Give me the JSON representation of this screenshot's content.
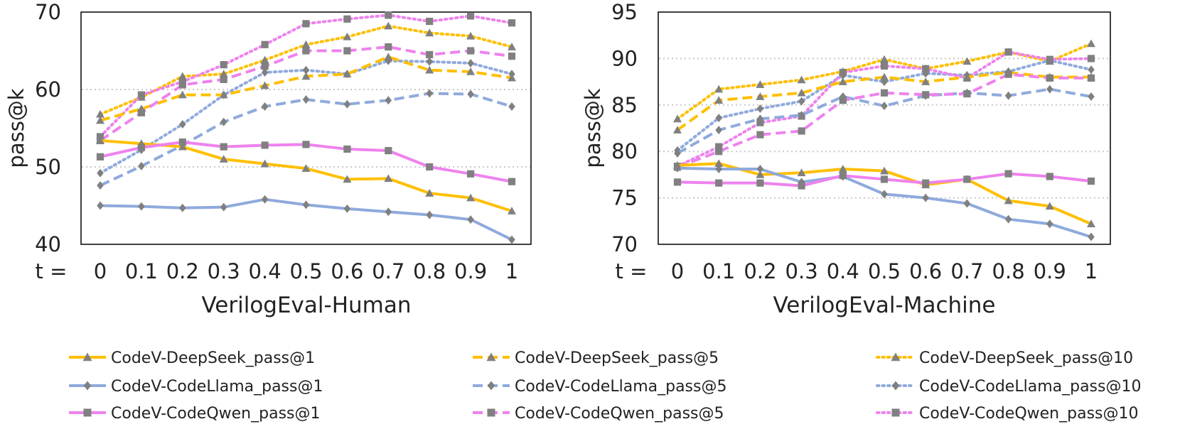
{
  "chart_data": [
    {
      "type": "line",
      "title": "",
      "xlabel": "VerilogEval-Human",
      "ylabel": "pass@k",
      "x_prefix": "t =",
      "categories": [
        "0",
        "0.1",
        "0.2",
        "0.3",
        "0.4",
        "0.5",
        "0.6",
        "0.7",
        "0.8",
        "0.9",
        "1"
      ],
      "ylim": [
        40,
        70
      ],
      "yticks": [
        "40",
        "50",
        "60",
        "70"
      ],
      "gridlines": [
        50,
        60
      ],
      "series": [
        {
          "name": "CodeV-DeepSeek_pass@1",
          "values": [
            53.4,
            53.0,
            52.6,
            51.0,
            50.4,
            49.8,
            48.4,
            48.5,
            46.6,
            46.0,
            44.3
          ]
        },
        {
          "name": "CodeV-CodeLlama_pass@1",
          "values": [
            45.0,
            44.9,
            44.7,
            44.8,
            45.8,
            45.1,
            44.6,
            44.2,
            43.8,
            43.2,
            40.6
          ]
        },
        {
          "name": "CodeV-CodeQwen_pass@1",
          "values": [
            51.3,
            52.5,
            53.2,
            52.6,
            52.8,
            52.9,
            52.3,
            52.1,
            50.0,
            49.1,
            48.1
          ]
        },
        {
          "name": "CodeV-DeepSeek_pass@5",
          "values": [
            56.0,
            57.5,
            59.3,
            59.3,
            60.5,
            61.7,
            62.0,
            64.2,
            62.5,
            62.3,
            61.5
          ]
        },
        {
          "name": "CodeV-CodeLlama_pass@5",
          "values": [
            47.6,
            50.1,
            52.8,
            55.8,
            57.8,
            58.7,
            58.1,
            58.6,
            59.5,
            59.4,
            57.8
          ]
        },
        {
          "name": "CodeV-CodeQwen_pass@5",
          "values": [
            53.4,
            57.0,
            60.6,
            61.3,
            63.0,
            65.0,
            65.0,
            65.5,
            64.5,
            65.0,
            64.3
          ]
        },
        {
          "name": "CodeV-DeepSeek_pass@10",
          "values": [
            56.8,
            59.0,
            61.7,
            62.0,
            63.8,
            65.8,
            66.8,
            68.2,
            67.3,
            66.9,
            65.5
          ]
        },
        {
          "name": "CodeV-CodeLlama_pass@10",
          "values": [
            49.2,
            52.2,
            55.5,
            59.3,
            62.2,
            62.5,
            62.0,
            63.7,
            63.6,
            63.4,
            62.0
          ]
        },
        {
          "name": "CodeV-CodeQwen_pass@10",
          "values": [
            53.9,
            59.3,
            61.0,
            63.2,
            65.8,
            68.5,
            69.1,
            69.6,
            68.8,
            69.5,
            68.6
          ]
        }
      ]
    },
    {
      "type": "line",
      "title": "",
      "xlabel": "VerilogEval-Machine",
      "ylabel": "pass@k",
      "x_prefix": "t =",
      "categories": [
        "0",
        "0.1",
        "0.2",
        "0.3",
        "0.4",
        "0.5",
        "0.6",
        "0.7",
        "0.8",
        "0.9",
        "1"
      ],
      "ylim": [
        70,
        95
      ],
      "yticks": [
        "70",
        "75",
        "80",
        "85",
        "90",
        "95"
      ],
      "gridlines": [
        75,
        80,
        85,
        90
      ],
      "series": [
        {
          "name": "CodeV-DeepSeek_pass@1",
          "values": [
            78.5,
            78.7,
            77.5,
            77.7,
            78.1,
            77.9,
            76.4,
            77.0,
            74.7,
            74.1,
            72.2
          ]
        },
        {
          "name": "CodeV-CodeLlama_pass@1",
          "values": [
            78.2,
            78.1,
            78.1,
            76.7,
            77.3,
            75.4,
            75.0,
            74.4,
            72.7,
            72.2,
            70.8
          ]
        },
        {
          "name": "CodeV-CodeQwen_pass@1",
          "values": [
            76.7,
            76.6,
            76.6,
            76.3,
            77.4,
            77.0,
            76.6,
            77.0,
            77.6,
            77.3,
            76.8
          ]
        },
        {
          "name": "CodeV-DeepSeek_pass@5",
          "values": [
            82.3,
            85.5,
            85.9,
            86.3,
            87.5,
            88.0,
            87.5,
            88.0,
            88.5,
            88.0,
            88.0
          ]
        },
        {
          "name": "CodeV-CodeLlama_pass@5",
          "values": [
            79.8,
            82.3,
            83.5,
            83.9,
            85.9,
            84.9,
            86.0,
            86.3,
            86.0,
            86.7,
            85.9
          ]
        },
        {
          "name": "CodeV-CodeQwen_pass@5",
          "values": [
            78.3,
            80.0,
            81.8,
            82.2,
            85.5,
            86.3,
            86.1,
            86.2,
            88.3,
            87.9,
            87.9
          ]
        },
        {
          "name": "CodeV-DeepSeek_pass@10",
          "values": [
            83.5,
            86.7,
            87.2,
            87.7,
            88.6,
            89.9,
            88.9,
            89.7,
            90.7,
            89.7,
            91.6
          ]
        },
        {
          "name": "CodeV-CodeLlama_pass@10",
          "values": [
            80.1,
            83.6,
            84.6,
            85.4,
            88.2,
            87.5,
            88.4,
            88.2,
            88.6,
            89.8,
            88.8
          ]
        },
        {
          "name": "CodeV-CodeQwen_pass@10",
          "values": [
            78.4,
            80.5,
            83.1,
            83.8,
            88.5,
            89.2,
            88.9,
            87.9,
            90.7,
            89.9,
            90.0
          ]
        }
      ]
    }
  ],
  "series_style": [
    {
      "name": "CodeV-DeepSeek_pass@1",
      "color": "#ffbf00",
      "dash": "solid",
      "marker": "triangle"
    },
    {
      "name": "CodeV-CodeLlama_pass@1",
      "color": "#8faadc",
      "dash": "solid",
      "marker": "diamond"
    },
    {
      "name": "CodeV-CodeQwen_pass@1",
      "color": "#ee82ee",
      "dash": "solid",
      "marker": "square"
    },
    {
      "name": "CodeV-DeepSeek_pass@5",
      "color": "#ffbf00",
      "dash": "dashed",
      "marker": "triangle"
    },
    {
      "name": "CodeV-CodeLlama_pass@5",
      "color": "#8faadc",
      "dash": "dashed",
      "marker": "diamond"
    },
    {
      "name": "CodeV-CodeQwen_pass@5",
      "color": "#ee82ee",
      "dash": "dashed",
      "marker": "square"
    },
    {
      "name": "CodeV-DeepSeek_pass@10",
      "color": "#ffbf00",
      "dash": "dotted",
      "marker": "triangle"
    },
    {
      "name": "CodeV-CodeLlama_pass@10",
      "color": "#8faadc",
      "dash": "dotted",
      "marker": "diamond"
    },
    {
      "name": "CodeV-CodeQwen_pass@10",
      "color": "#ee82ee",
      "dash": "dotted",
      "marker": "square"
    }
  ],
  "marker_color": "#808080",
  "legend": {
    "placement": "bottom",
    "entries": [
      "CodeV-DeepSeek_pass@1",
      "CodeV-DeepSeek_pass@5",
      "CodeV-DeepSeek_pass@10",
      "CodeV-CodeLlama_pass@1",
      "CodeV-CodeLlama_pass@5",
      "CodeV-CodeLlama_pass@10",
      "CodeV-CodeQwen_pass@1",
      "CodeV-CodeQwen_pass@5",
      "CodeV-CodeQwen_pass@10"
    ]
  }
}
